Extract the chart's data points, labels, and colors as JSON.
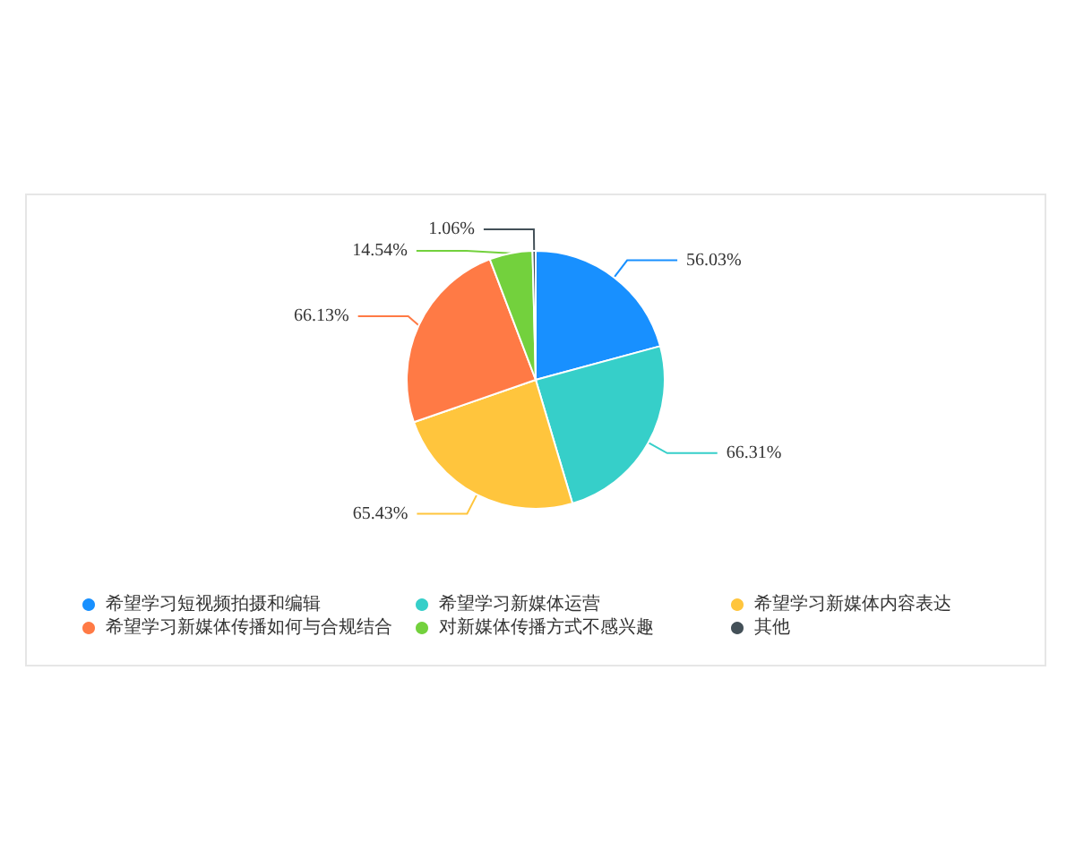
{
  "chart_data": {
    "type": "pie",
    "categories": [
      "希望学习短视频拍摄和编辑",
      "希望学习新媒体运营",
      "希望学习新媒体内容表达",
      "希望学习新媒体传播如何与合规结合",
      "对新媒体传播方式不感兴趣",
      "其他"
    ],
    "values": [
      56.03,
      66.31,
      65.43,
      66.13,
      14.54,
      1.06
    ],
    "colors": [
      "#1890ff",
      "#36cfc9",
      "#ffc53d",
      "#ff7a45",
      "#73d13d",
      "#435058"
    ],
    "value_labels": [
      "56.03%",
      "66.31%",
      "65.43%",
      "66.13%",
      "14.54%",
      "1.06%"
    ],
    "legend": "bottom"
  }
}
